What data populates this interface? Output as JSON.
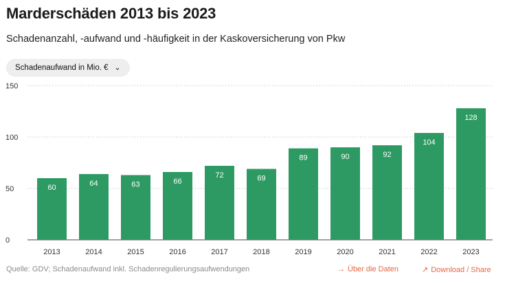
{
  "header": {
    "title": "Marderschäden 2013 bis 2023",
    "subtitle": "Schadenanzahl, -aufwand und -häufigkeit in der Kaskoversicherung von Pkw"
  },
  "metric_selector": {
    "selected": "Schadenaufwand in Mio. €",
    "icon": "chevron-down-icon"
  },
  "chart_data": {
    "type": "bar",
    "categories": [
      "2013",
      "2014",
      "2015",
      "2016",
      "2017",
      "2018",
      "2019",
      "2020",
      "2021",
      "2022",
      "2023"
    ],
    "values": [
      60,
      64,
      63,
      66,
      72,
      69,
      89,
      90,
      92,
      104,
      128
    ],
    "data_labels": [
      "60",
      "64",
      "63",
      "66",
      "72",
      "69",
      "89",
      "90",
      "92",
      "104",
      "128"
    ],
    "yticks": [
      0,
      50,
      100,
      150
    ],
    "ylim": [
      0,
      150
    ],
    "grid": true,
    "bar_color": "#2e9a63",
    "label_color": "#ffffff"
  },
  "footer": {
    "source": "Quelle: GDV; Schadenaufwand inkl. Schadenregulierungsaufwendungen",
    "data_link": "Über die Daten",
    "data_link_icon": "arrow-right-icon",
    "share_link": "Download / Share",
    "share_link_icon": "arrow-up-right-icon",
    "link_color": "#e8643c"
  }
}
